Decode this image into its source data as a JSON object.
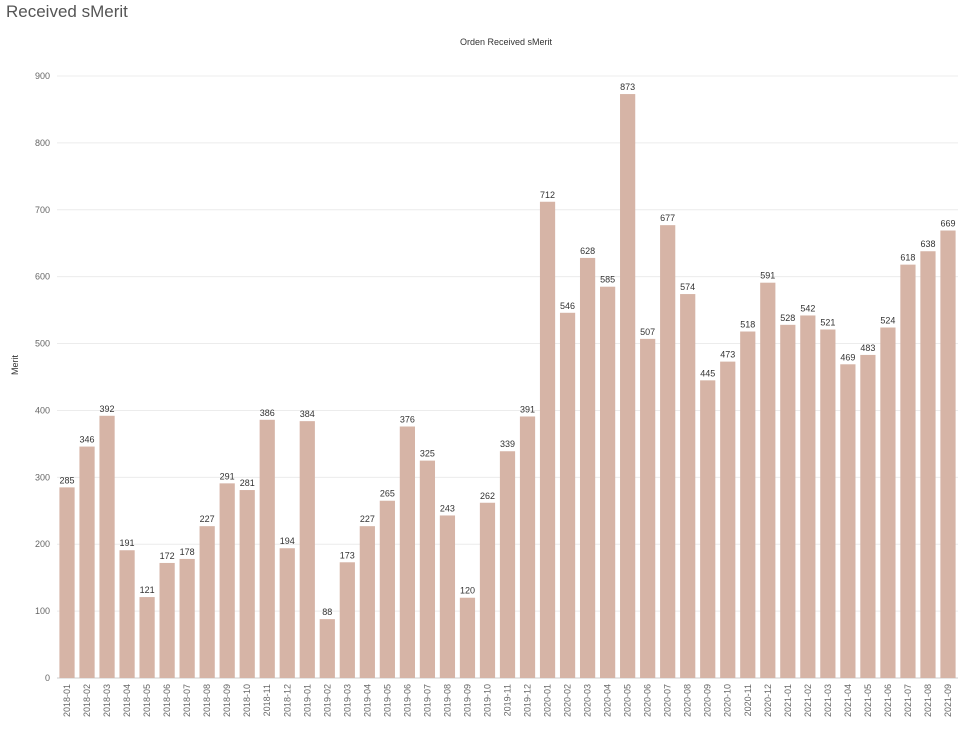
{
  "page": {
    "title": "Received sMerit"
  },
  "colors": {
    "bar": "#d6b4a6",
    "grid": "#ececec",
    "axis": "#cccccc"
  },
  "chart_data": {
    "type": "bar",
    "title": "Orden Received sMerit",
    "xlabel": "",
    "ylabel": "Merit",
    "ylim": [
      0,
      900
    ],
    "yticks": [
      0,
      100,
      200,
      300,
      400,
      500,
      600,
      700,
      800,
      900
    ],
    "grid": true,
    "categories": [
      "2018-01",
      "2018-02",
      "2018-03",
      "2018-04",
      "2018-05",
      "2018-06",
      "2018-07",
      "2018-08",
      "2018-09",
      "2018-10",
      "2018-11",
      "2018-12",
      "2019-01",
      "2019-02",
      "2019-03",
      "2019-04",
      "2019-05",
      "2019-06",
      "2019-07",
      "2019-08",
      "2019-09",
      "2019-10",
      "2019-11",
      "2019-12",
      "2020-01",
      "2020-02",
      "2020-03",
      "2020-04",
      "2020-05",
      "2020-06",
      "2020-07",
      "2020-08",
      "2020-09",
      "2020-10",
      "2020-11",
      "2020-12",
      "2021-01",
      "2021-02",
      "2021-03",
      "2021-04",
      "2021-05",
      "2021-06",
      "2021-07",
      "2021-08",
      "2021-09"
    ],
    "values": [
      285,
      346,
      392,
      191,
      121,
      172,
      178,
      227,
      291,
      281,
      386,
      194,
      384,
      88,
      173,
      227,
      265,
      376,
      325,
      243,
      120,
      262,
      339,
      391,
      712,
      546,
      628,
      585,
      873,
      507,
      677,
      574,
      445,
      473,
      518,
      591,
      528,
      542,
      521,
      469,
      483,
      524,
      618,
      638,
      669
    ]
  }
}
